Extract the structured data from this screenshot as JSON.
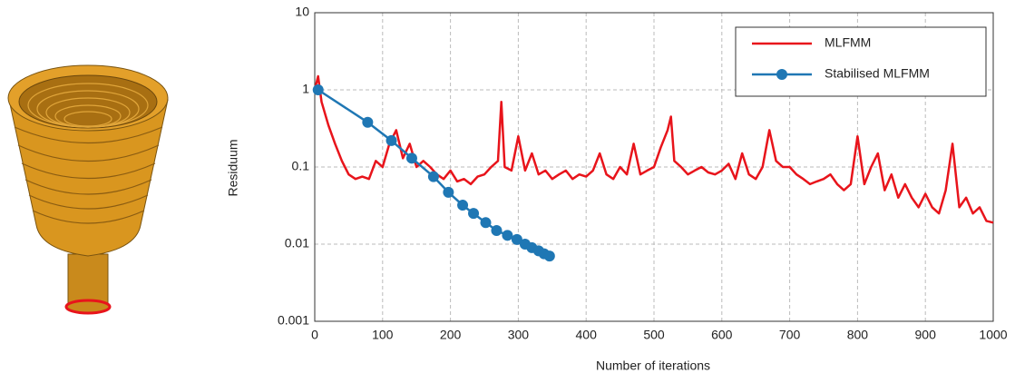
{
  "chart_data": {
    "type": "line",
    "x_label": "Number of iterations",
    "y_label": "Residuum",
    "xlim": [
      0,
      1000
    ],
    "xticks": [
      0,
      100,
      200,
      300,
      400,
      500,
      600,
      700,
      800,
      900,
      1000
    ],
    "ylim": [
      0.001,
      10
    ],
    "yticks": [
      0.001,
      0.01,
      0.1,
      1,
      10
    ],
    "log_y": true,
    "grid": true,
    "legend": "upper right",
    "series": [
      {
        "name": "MLFMM",
        "color": "#e8141b",
        "marker": false,
        "x": [
          0,
          5,
          10,
          20,
          30,
          40,
          50,
          60,
          70,
          80,
          90,
          100,
          110,
          120,
          130,
          140,
          150,
          160,
          170,
          180,
          190,
          200,
          210,
          220,
          230,
          240,
          250,
          260,
          270,
          275,
          280,
          290,
          300,
          310,
          320,
          330,
          340,
          350,
          360,
          370,
          380,
          390,
          400,
          410,
          420,
          430,
          440,
          450,
          460,
          470,
          480,
          490,
          500,
          510,
          520,
          525,
          530,
          540,
          550,
          560,
          570,
          580,
          590,
          600,
          610,
          620,
          630,
          640,
          650,
          660,
          670,
          680,
          690,
          700,
          710,
          720,
          730,
          740,
          750,
          760,
          770,
          780,
          790,
          800,
          810,
          820,
          830,
          840,
          850,
          860,
          870,
          880,
          890,
          900,
          910,
          920,
          930,
          940,
          950,
          960,
          970,
          980,
          990,
          1000
        ],
        "values": [
          1,
          1.5,
          0.7,
          0.35,
          0.2,
          0.12,
          0.08,
          0.07,
          0.075,
          0.07,
          0.12,
          0.1,
          0.2,
          0.3,
          0.13,
          0.2,
          0.1,
          0.12,
          0.1,
          0.08,
          0.07,
          0.09,
          0.065,
          0.07,
          0.06,
          0.075,
          0.08,
          0.1,
          0.12,
          0.7,
          0.1,
          0.09,
          0.25,
          0.09,
          0.15,
          0.08,
          0.09,
          0.07,
          0.08,
          0.09,
          0.07,
          0.08,
          0.075,
          0.09,
          0.15,
          0.08,
          0.07,
          0.1,
          0.08,
          0.2,
          0.08,
          0.09,
          0.1,
          0.18,
          0.3,
          0.45,
          0.12,
          0.1,
          0.08,
          0.09,
          0.1,
          0.085,
          0.08,
          0.09,
          0.11,
          0.07,
          0.15,
          0.08,
          0.07,
          0.1,
          0.3,
          0.12,
          0.1,
          0.1,
          0.08,
          0.07,
          0.06,
          0.065,
          0.07,
          0.08,
          0.06,
          0.05,
          0.06,
          0.25,
          0.06,
          0.1,
          0.15,
          0.05,
          0.08,
          0.04,
          0.06,
          0.04,
          0.03,
          0.045,
          0.03,
          0.025,
          0.05,
          0.2,
          0.03,
          0.04,
          0.025,
          0.03,
          0.02,
          0.019
        ]
      },
      {
        "name": "Stabilised MLFMM",
        "color": "#1f77b4",
        "marker": true,
        "x": [
          5,
          78,
          113,
          143,
          175,
          197,
          218,
          234,
          252,
          268,
          284,
          298,
          310,
          320,
          330,
          338,
          346
        ],
        "values": [
          1,
          0.38,
          0.22,
          0.13,
          0.075,
          0.047,
          0.032,
          0.025,
          0.019,
          0.015,
          0.013,
          0.0115,
          0.01,
          0.009,
          0.0082,
          0.0075,
          0.007
        ]
      }
    ]
  }
}
